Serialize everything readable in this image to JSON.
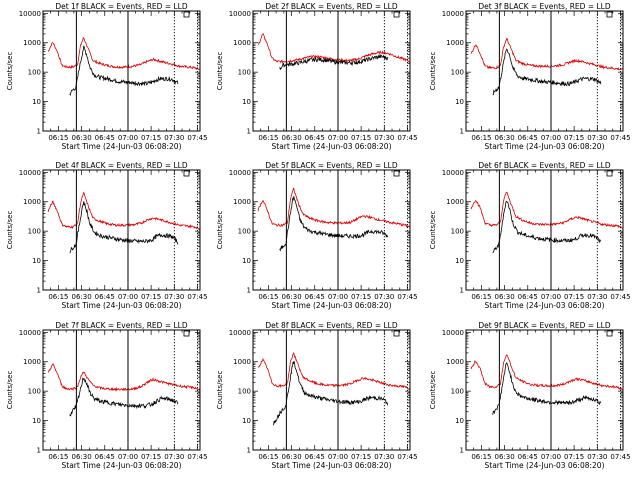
{
  "chart_data": {
    "type": "line",
    "layout": "3x3 grid",
    "xlabel": "Start Time (24-Jun-03 06:08:20)",
    "ylabel": "Counts/sec",
    "yscale": "log",
    "ylim": [
      1,
      12000
    ],
    "xlim_minutes": [
      -3.3,
      98.3
    ],
    "x_ticks": [
      "06:15",
      "06:30",
      "06:45",
      "07:00",
      "07:15",
      "07:30",
      "07:45"
    ],
    "x_tick_minutes": [
      6.67,
      21.67,
      36.67,
      51.67,
      66.67,
      81.67,
      96.67
    ],
    "y_ticks": [
      "1",
      "10",
      "100",
      "1000",
      "10000"
    ],
    "y_tick_values": [
      1,
      10,
      100,
      1000,
      10000
    ],
    "colors": {
      "events": "#000000",
      "lld": "#dd0000",
      "axes": "#000000"
    },
    "legend": {
      "events_color": "BLACK",
      "lld_color": "RED"
    },
    "markers": {
      "solid_minutes": [
        18.3,
        51.7
      ],
      "dotted_minutes": [
        81.7,
        96.7
      ]
    },
    "subplots": [
      {
        "title": "Det 1f BLACK = Events, RED = LLD",
        "series": [
          {
            "name": "LLD",
            "x": [
              0,
              3,
              6,
              9,
              12,
              16,
              19,
              21,
              23,
              26,
              29,
              33,
              38,
              44,
              50,
              55,
              60,
              64,
              68,
              72,
              76,
              80,
              85,
              90,
              95,
              98
            ],
            "values": [
              500,
              1050,
              500,
              170,
              150,
              150,
              180,
              800,
              1500,
              600,
              250,
              200,
              170,
              150,
              150,
              160,
              180,
              230,
              270,
              240,
              210,
              190,
              160,
              150,
              140,
              125
            ]
          },
          {
            "name": "Events",
            "x": [
              14,
              16,
              18,
              20,
              22,
              23,
              25,
              27,
              30,
              34,
              40,
              46,
              52,
              58,
              63,
              67,
              70,
              73,
              77,
              80,
              82,
              84
            ],
            "values": [
              18,
              25,
              30,
              120,
              400,
              700,
              400,
              150,
              80,
              65,
              58,
              48,
              45,
              42,
              40,
              45,
              55,
              60,
              60,
              58,
              50,
              42
            ]
          }
        ]
      },
      {
        "title": "Det 2f BLACK = Events, RED = LLD",
        "series": [
          {
            "name": "LLD",
            "x": [
              0,
              3,
              6,
              9,
              12,
              16,
              20,
              25,
              30,
              35,
              40,
              45,
              50,
              55,
              60,
              65,
              70,
              75,
              80,
              85,
              90,
              95,
              98
            ],
            "values": [
              800,
              2000,
              900,
              300,
              230,
              230,
              240,
              260,
              300,
              340,
              330,
              300,
              270,
              250,
              250,
              280,
              360,
              430,
              480,
              420,
              330,
              270,
              230
            ]
          },
          {
            "name": "Events",
            "x": [
              14,
              16,
              18,
              22,
              26,
              30,
              35,
              40,
              45,
              50,
              55,
              60,
              65,
              70,
              75,
              80,
              84
            ],
            "values": [
              130,
              170,
              180,
              190,
              205,
              230,
              260,
              270,
              250,
              220,
              210,
              210,
              220,
              260,
              310,
              340,
              300
            ]
          }
        ]
      },
      {
        "title": "Det 3f BLACK = Events, RED = LLD",
        "series": [
          {
            "name": "LLD",
            "x": [
              0,
              3,
              6,
              9,
              12,
              16,
              19,
              21,
              23,
              26,
              29,
              33,
              38,
              44,
              50,
              55,
              60,
              64,
              68,
              72,
              76,
              80,
              85,
              90,
              95,
              98
            ],
            "values": [
              420,
              900,
              420,
              160,
              140,
              140,
              170,
              700,
              1400,
              600,
              250,
              200,
              170,
              160,
              160,
              165,
              180,
              220,
              250,
              230,
              200,
              180,
              150,
              140,
              130,
              120
            ]
          },
          {
            "name": "Events",
            "x": [
              14,
              16,
              18,
              20,
              22,
              23,
              25,
              27,
              30,
              34,
              40,
              46,
              52,
              58,
              63,
              67,
              70,
              73,
              77,
              80,
              82,
              84
            ],
            "values": [
              18,
              25,
              30,
              110,
              380,
              650,
              380,
              140,
              75,
              60,
              55,
              48,
              45,
              42,
              40,
              45,
              55,
              60,
              60,
              58,
              50,
              42
            ]
          }
        ]
      },
      {
        "title": "Det 4f BLACK = Events, RED = LLD",
        "series": [
          {
            "name": "LLD",
            "x": [
              0,
              3,
              6,
              9,
              12,
              16,
              19,
              21,
              23,
              26,
              29,
              33,
              38,
              44,
              50,
              55,
              60,
              64,
              68,
              72,
              76,
              80,
              85,
              90,
              95,
              98
            ],
            "values": [
              480,
              1000,
              480,
              170,
              140,
              140,
              175,
              900,
              2000,
              700,
              280,
              220,
              180,
              160,
              160,
              165,
              185,
              240,
              280,
              250,
              220,
              190,
              160,
              150,
              140,
              120
            ]
          },
          {
            "name": "Events",
            "x": [
              14,
              16,
              18,
              20,
              22,
              23,
              25,
              27,
              30,
              34,
              40,
              46,
              52,
              58,
              63,
              67,
              70,
              73,
              77,
              80,
              82,
              84
            ],
            "values": [
              20,
              28,
              35,
              140,
              600,
              1000,
              500,
              180,
              90,
              70,
              60,
              52,
              48,
              45,
              45,
              50,
              65,
              75,
              70,
              65,
              55,
              40
            ]
          }
        ]
      },
      {
        "title": "Det 5f BLACK = Events, RED = LLD",
        "series": [
          {
            "name": "LLD",
            "x": [
              0,
              3,
              6,
              9,
              12,
              16,
              19,
              21,
              23,
              26,
              29,
              33,
              38,
              44,
              50,
              55,
              60,
              64,
              68,
              72,
              76,
              80,
              85,
              90,
              95,
              98
            ],
            "values": [
              520,
              1150,
              520,
              180,
              160,
              160,
              200,
              1300,
              2800,
              900,
              380,
              280,
              230,
              200,
              190,
              190,
              200,
              260,
              330,
              300,
              260,
              230,
              200,
              180,
              160,
              140
            ]
          },
          {
            "name": "Events",
            "x": [
              14,
              16,
              18,
              20,
              22,
              23,
              25,
              27,
              30,
              34,
              40,
              46,
              52,
              58,
              63,
              67,
              70,
              73,
              77,
              80,
              82,
              84
            ],
            "values": [
              22,
              30,
              40,
              200,
              900,
              1500,
              700,
              250,
              130,
              100,
              85,
              75,
              70,
              68,
              68,
              72,
              85,
              100,
              95,
              90,
              80,
              65
            ]
          }
        ]
      },
      {
        "title": "Det 6f BLACK = Events, RED = LLD",
        "series": [
          {
            "name": "LLD",
            "x": [
              0,
              3,
              6,
              9,
              12,
              16,
              19,
              21,
              23,
              26,
              29,
              33,
              38,
              44,
              50,
              55,
              60,
              64,
              68,
              72,
              76,
              80,
              85,
              90,
              95,
              98
            ],
            "values": [
              600,
              1200,
              600,
              190,
              160,
              160,
              200,
              1100,
              2200,
              800,
              320,
              240,
              190,
              170,
              170,
              175,
              195,
              250,
              300,
              270,
              230,
              200,
              170,
              160,
              150,
              130
            ]
          },
          {
            "name": "Events",
            "x": [
              14,
              16,
              18,
              20,
              22,
              23,
              25,
              27,
              30,
              34,
              40,
              46,
              52,
              58,
              63,
              67,
              70,
              73,
              77,
              80,
              82,
              84
            ],
            "values": [
              18,
              26,
              34,
              160,
              700,
              1200,
              550,
              190,
              95,
              75,
              62,
              55,
              50,
              48,
              48,
              52,
              65,
              75,
              72,
              65,
              55,
              40
            ]
          }
        ]
      },
      {
        "title": "Det 7f BLACK = Events, RED = LLD",
        "series": [
          {
            "name": "LLD",
            "x": [
              0,
              3,
              6,
              9,
              12,
              16,
              19,
              21,
              23,
              26,
              29,
              33,
              38,
              44,
              50,
              55,
              60,
              64,
              68,
              72,
              76,
              80,
              85,
              90,
              95,
              98
            ],
            "values": [
              400,
              850,
              400,
              150,
              120,
              120,
              140,
              300,
              450,
              250,
              160,
              130,
              120,
              115,
              115,
              120,
              140,
              200,
              250,
              220,
              190,
              170,
              150,
              140,
              130,
              110
            ]
          },
          {
            "name": "Events",
            "x": [
              14,
              16,
              18,
              20,
              22,
              23,
              25,
              27,
              30,
              34,
              40,
              46,
              52,
              58,
              63,
              67,
              70,
              73,
              77,
              80,
              82,
              84
            ],
            "values": [
              15,
              22,
              28,
              70,
              200,
              300,
              180,
              90,
              55,
              45,
              40,
              35,
              33,
              32,
              32,
              36,
              45,
              55,
              55,
              50,
              45,
              38
            ]
          }
        ]
      },
      {
        "title": "Det 8f BLACK = Events, RED = LLD",
        "series": [
          {
            "name": "LLD",
            "x": [
              0,
              3,
              6,
              9,
              12,
              16,
              19,
              21,
              23,
              26,
              29,
              33,
              38,
              44,
              50,
              55,
              60,
              64,
              68,
              72,
              76,
              80,
              85,
              90,
              95,
              98
            ],
            "values": [
              600,
              1200,
              600,
              190,
              150,
              150,
              190,
              1000,
              2000,
              750,
              300,
              230,
              180,
              160,
              155,
              160,
              180,
              230,
              280,
              250,
              220,
              190,
              160,
              150,
              140,
              120
            ]
          },
          {
            "name": "Events",
            "x": [
              10,
              12,
              14,
              16,
              18,
              20,
              22,
              23,
              25,
              27,
              30,
              34,
              40,
              46,
              52,
              58,
              63,
              67,
              70,
              73,
              77,
              80,
              82,
              84
            ],
            "values": [
              8,
              12,
              18,
              25,
              32,
              150,
              650,
              1000,
              500,
              180,
              90,
              70,
              58,
              50,
              45,
              42,
              42,
              46,
              55,
              60,
              58,
              55,
              48,
              38
            ]
          }
        ]
      },
      {
        "title": "Det 9f BLACK = Events, RED = LLD",
        "series": [
          {
            "name": "LLD",
            "x": [
              0,
              3,
              6,
              9,
              12,
              16,
              19,
              21,
              23,
              26,
              29,
              33,
              38,
              44,
              50,
              55,
              60,
              64,
              68,
              72,
              76,
              80,
              85,
              90,
              95,
              98
            ],
            "values": [
              550,
              1100,
              550,
              180,
              140,
              140,
              180,
              900,
              1900,
              700,
              280,
              220,
              170,
              155,
              150,
              155,
              175,
              220,
              260,
              240,
              210,
              180,
              155,
              145,
              135,
              115
            ]
          },
          {
            "name": "Events",
            "x": [
              14,
              16,
              18,
              20,
              22,
              23,
              25,
              27,
              30,
              34,
              40,
              46,
              52,
              58,
              63,
              67,
              70,
              73,
              77,
              80,
              82,
              84
            ],
            "values": [
              17,
              25,
              32,
              130,
              550,
              900,
              450,
              160,
              80,
              62,
              52,
              46,
              42,
              40,
              40,
              44,
              52,
              58,
              56,
              52,
              45,
              36
            ]
          }
        ]
      }
    ]
  }
}
